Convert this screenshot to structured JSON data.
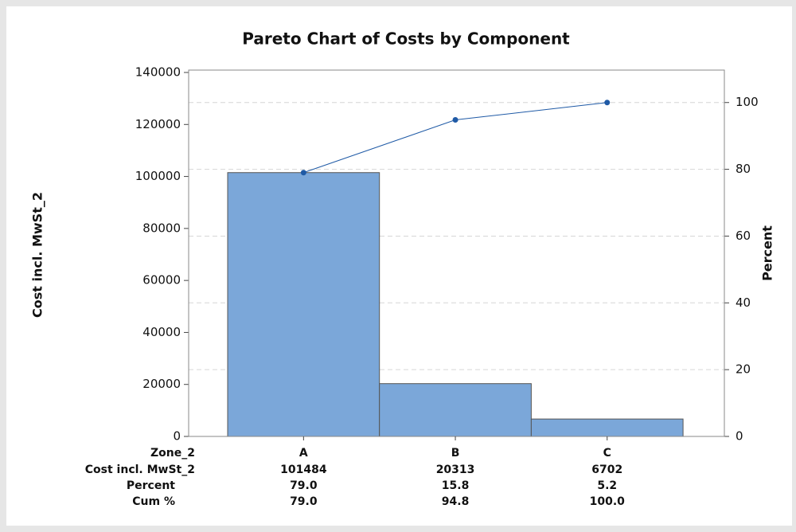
{
  "chart_data": {
    "type": "pareto",
    "title": "Pareto Chart of Costs by Component",
    "y_label": "Cost incl. MwSt_2",
    "y2_label": "Percent",
    "x_label": "Zone_2",
    "categories": [
      "A",
      "B",
      "C"
    ],
    "series": [
      {
        "name": "Cost incl. MwSt_2",
        "color": "#7ba7d9",
        "values": [
          101484,
          20313,
          6702
        ]
      }
    ],
    "percent": {
      "name": "Percent",
      "values": [
        79.0,
        15.8,
        5.2
      ],
      "value_labels": [
        "79.0",
        "15.8",
        "5.2"
      ]
    },
    "cum": {
      "name": "Cum %",
      "axis": "y2",
      "color": "#1f5aa6",
      "values": [
        79.0,
        94.8,
        100.0
      ],
      "value_labels": [
        "79.0",
        "94.8",
        "100.0"
      ]
    },
    "ylim": [
      0,
      140000
    ],
    "yticks": [
      0,
      20000,
      40000,
      60000,
      80000,
      100000,
      120000,
      140000
    ],
    "y2lim": [
      0,
      109
    ],
    "y2ticks": [
      0,
      20,
      40,
      60,
      80,
      100
    ],
    "grid": true
  }
}
